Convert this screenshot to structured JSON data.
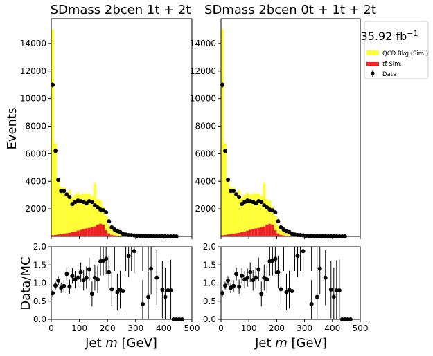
{
  "chart_data": {
    "type": "bar",
    "panels": [
      {
        "title": "SDmass  2bcen 1t + 2t"
      },
      {
        "title": "SDmass  2bcen 0t + 1t + 2t"
      }
    ],
    "ylabel_top": "Events",
    "ylabel_ratio": "Data/MC",
    "xlabel": "Jet $m$ [GeV]",
    "xlim": [
      0,
      500
    ],
    "ylim_top": [
      0,
      15800
    ],
    "ylim_ratio": [
      0,
      2.0
    ],
    "xticks": [
      0,
      100,
      200,
      300,
      400,
      500
    ],
    "yticks_top": [
      2000,
      4000,
      6000,
      8000,
      10000,
      12000,
      14000
    ],
    "yticks_ratio": [
      0.0,
      0.5,
      1.0,
      1.5,
      2.0
    ],
    "bin_edges": [
      0,
      10,
      20,
      30,
      40,
      50,
      60,
      70,
      80,
      90,
      100,
      110,
      120,
      130,
      140,
      150,
      160,
      170,
      180,
      190,
      200,
      210,
      220,
      230,
      240,
      250,
      260,
      270,
      280,
      290,
      300,
      310,
      320,
      330,
      340,
      350,
      360,
      370,
      380,
      390,
      400,
      410,
      420,
      430,
      440,
      450,
      460,
      470,
      480,
      490,
      500
    ],
    "series": [
      {
        "name": "QCD Bkg (Sim.)",
        "color": "#ffff33",
        "values": [
          14950,
          6650,
          3900,
          3400,
          3350,
          2950,
          3100,
          2550,
          2700,
          2750,
          2550,
          2600,
          2550,
          2500,
          2300,
          3150,
          1850,
          1700,
          1300,
          1050,
          600,
          380,
          280,
          220,
          160,
          130,
          90,
          70,
          55,
          45,
          35,
          30,
          25,
          20,
          18,
          15,
          12,
          10,
          8,
          6,
          5,
          4,
          4,
          3,
          3,
          2,
          2,
          2,
          2,
          2
        ]
      },
      {
        "name": "$t\\bar{t}$ Sim.",
        "color": "#ee2222",
        "values": [
          80,
          110,
          140,
          170,
          200,
          230,
          260,
          300,
          350,
          420,
          480,
          530,
          580,
          620,
          660,
          720,
          850,
          920,
          850,
          450,
          220,
          110,
          70,
          50,
          40,
          30,
          25,
          20,
          18,
          15,
          12,
          10,
          8,
          6,
          5,
          4,
          3,
          3,
          2,
          2,
          2,
          1,
          1,
          1,
          1,
          1,
          1,
          1,
          1,
          1
        ]
      },
      {
        "name": "Data",
        "color": "#000000",
        "values": [
          11000,
          6200,
          4100,
          3300,
          3300,
          3050,
          2850,
          2350,
          2500,
          2600,
          2550,
          2500,
          2400,
          2550,
          2500,
          2250,
          2100,
          1950,
          1900,
          1750,
          1100,
          650,
          500,
          380,
          320,
          180,
          140,
          100,
          95,
          75,
          45,
          35,
          30,
          25,
          20,
          15,
          12,
          10,
          8,
          6,
          5,
          3,
          3,
          2,
          1,
          0,
          0,
          0,
          0,
          0
        ]
      }
    ],
    "ratio": [
      0.72,
      0.93,
      1.07,
      0.87,
      0.92,
      1.25,
      0.9,
      1.2,
      1.1,
      1.15,
      1.3,
      1.08,
      1.15,
      1.38,
      0.7,
      1.15,
      1.1,
      1.6,
      1.62,
      1.67,
      1.3,
      0.83,
      null,
      0.75,
      0.82,
      0.78,
      null,
      1.75,
      null,
      1.88,
      0.42,
      null,
      0.62,
      1.4,
      null,
      1.15,
      null,
      0.82,
      0.62,
      0.8,
      0.8,
      0.0,
      0.0,
      0.0,
      0.0
    ],
    "ratio_x": [
      5,
      15,
      25,
      35,
      45,
      55,
      65,
      75,
      85,
      95,
      105,
      115,
      125,
      135,
      145,
      155,
      165,
      175,
      185,
      195,
      205,
      215,
      225,
      235,
      245,
      255,
      265,
      275,
      285,
      295,
      325,
      330,
      345,
      355,
      365,
      375,
      385,
      395,
      405,
      415,
      425,
      435,
      445,
      455,
      465
    ],
    "legend": {
      "placement": "right",
      "lumi": "35.92 fb$^{-1}$"
    }
  }
}
